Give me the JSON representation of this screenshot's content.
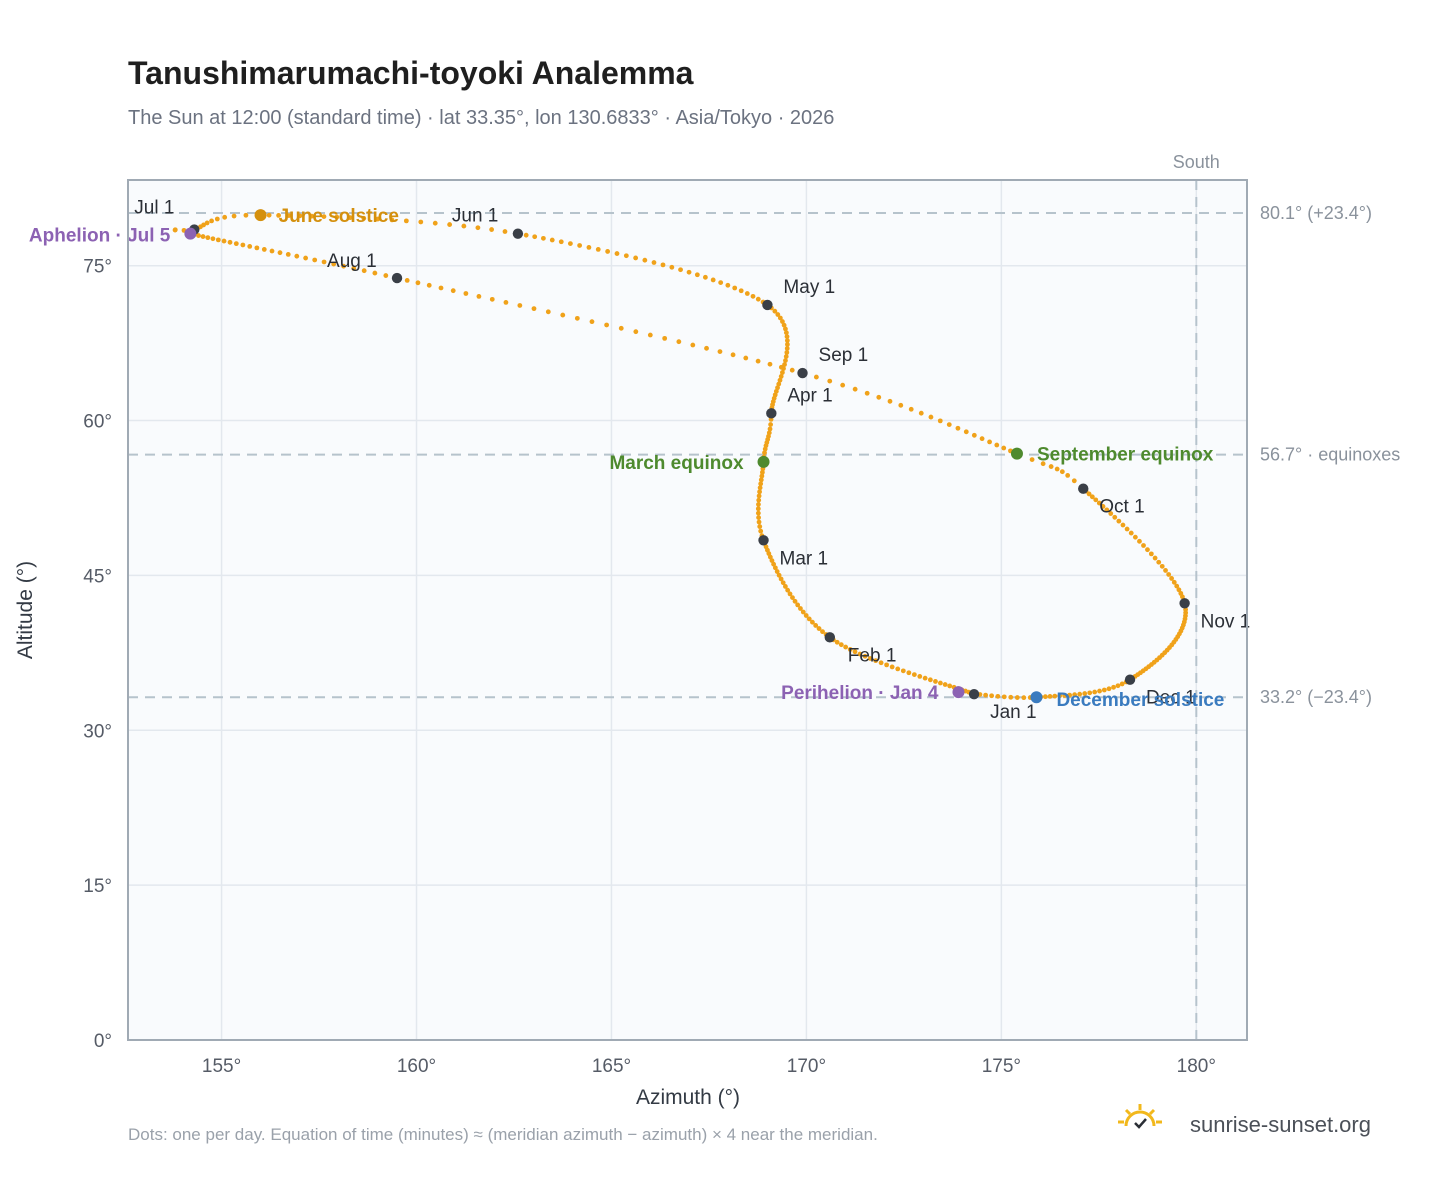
{
  "title": "Tanushimarumachi-toyoki Analemma",
  "subtitle": "The Sun at 12:00 (standard time) · lat 33.35°, lon 130.6833° · Asia/Tokyo · 2026",
  "footnote": "Dots: one per day. Equation of time (minutes) ≈ (meridian azimuth − azimuth) × 4 near the meridian.",
  "brand": {
    "name": "sunrise-sunset.org",
    "icon": "sun-check-icon"
  },
  "colors": {
    "path": "#f0a21a",
    "month_marker": "#3a3f47",
    "solstice_june": "#d4900e",
    "equinox": "#4e8a2e",
    "solstice_december": "#3a7bbf",
    "apsis": "#8c62b3",
    "reference_line": "#b6c3cc",
    "plot_bg": "#f9fbfd",
    "grid": "#e3e8ee",
    "frame": "#a0aab4"
  },
  "chart_data": {
    "type": "scatter",
    "title": "Tanushimarumachi-toyoki Analemma",
    "xlabel": "Azimuth (°)",
    "ylabel": "Altitude (°)",
    "xlim": [
      152.6,
      181.3
    ],
    "ylim": [
      0,
      83.3
    ],
    "xticks": [
      155,
      160,
      165,
      170,
      175,
      180
    ],
    "xtick_labels": [
      "155°",
      "160°",
      "165°",
      "170°",
      "175°",
      "180°"
    ],
    "yticks": [
      0,
      15,
      30,
      45,
      60,
      75
    ],
    "ytick_labels": [
      "0°",
      "15°",
      "30°",
      "45°",
      "60°",
      "75°"
    ],
    "grid": true,
    "meridian": {
      "azimuth": 180,
      "label": "South"
    },
    "reference_lines": [
      {
        "altitude": 80.1,
        "label": "80.1° (+23.4°)"
      },
      {
        "altitude": 56.7,
        "label": "56.7° · equinoxes"
      },
      {
        "altitude": 33.2,
        "label": "33.2° (−23.4°)"
      }
    ],
    "path_key_points": [
      {
        "azimuth": 174.3,
        "altitude": 33.5,
        "day": 1
      },
      {
        "azimuth": 170.6,
        "altitude": 39.0,
        "day": 32
      },
      {
        "azimuth": 168.9,
        "altitude": 48.4,
        "day": 60
      },
      {
        "azimuth": 168.9,
        "altitude": 56.0,
        "day": 79
      },
      {
        "azimuth": 169.1,
        "altitude": 60.7,
        "day": 91
      },
      {
        "azimuth": 169.0,
        "altitude": 71.2,
        "day": 121
      },
      {
        "azimuth": 162.6,
        "altitude": 78.1,
        "day": 152
      },
      {
        "azimuth": 156.0,
        "altitude": 79.9,
        "day": 172
      },
      {
        "azimuth": 154.3,
        "altitude": 78.5,
        "day": 182
      },
      {
        "azimuth": 154.2,
        "altitude": 78.1,
        "day": 186
      },
      {
        "azimuth": 159.5,
        "altitude": 73.8,
        "day": 213
      },
      {
        "azimuth": 169.9,
        "altitude": 64.6,
        "day": 244
      },
      {
        "azimuth": 175.4,
        "altitude": 56.8,
        "day": 266
      },
      {
        "azimuth": 177.1,
        "altitude": 53.4,
        "day": 274
      },
      {
        "azimuth": 179.7,
        "altitude": 42.3,
        "day": 305
      },
      {
        "azimuth": 178.3,
        "altitude": 34.9,
        "day": 335
      },
      {
        "azimuth": 175.9,
        "altitude": 33.2,
        "day": 355
      },
      {
        "azimuth": 173.9,
        "altitude": 33.7,
        "day": 369
      }
    ],
    "month_markers": [
      {
        "label": "Jan 1",
        "azimuth": 174.3,
        "altitude": 33.5
      },
      {
        "label": "Feb 1",
        "azimuth": 170.6,
        "altitude": 39.0
      },
      {
        "label": "Mar 1",
        "azimuth": 168.9,
        "altitude": 48.4
      },
      {
        "label": "Apr 1",
        "azimuth": 169.1,
        "altitude": 60.7
      },
      {
        "label": "May 1",
        "azimuth": 169.0,
        "altitude": 71.2
      },
      {
        "label": "Jun 1",
        "azimuth": 162.6,
        "altitude": 78.1
      },
      {
        "label": "Jul 1",
        "azimuth": 154.3,
        "altitude": 78.5
      },
      {
        "label": "Aug 1",
        "azimuth": 159.5,
        "altitude": 73.8
      },
      {
        "label": "Sep 1",
        "azimuth": 169.9,
        "altitude": 64.6
      },
      {
        "label": "Oct 1",
        "azimuth": 177.1,
        "altitude": 53.4
      },
      {
        "label": "Nov 1",
        "azimuth": 179.7,
        "altitude": 42.3
      },
      {
        "label": "Dec 1",
        "azimuth": 178.3,
        "altitude": 34.9
      }
    ],
    "events": [
      {
        "label": "June solstice",
        "azimuth": 156.0,
        "altitude": 79.9,
        "color": "#d4900e"
      },
      {
        "label": "March equinox",
        "azimuth": 168.9,
        "altitude": 56.0,
        "color": "#4e8a2e"
      },
      {
        "label": "September equinox",
        "azimuth": 175.4,
        "altitude": 56.8,
        "color": "#4e8a2e"
      },
      {
        "label": "December solstice",
        "azimuth": 175.9,
        "altitude": 33.2,
        "color": "#3a7bbf"
      },
      {
        "label": "Aphelion · Jul 5",
        "azimuth": 154.2,
        "altitude": 78.1,
        "color": "#8c62b3"
      },
      {
        "label": "Perihelion · Jan 4",
        "azimuth": 173.9,
        "altitude": 33.7,
        "color": "#8c62b3"
      }
    ]
  }
}
